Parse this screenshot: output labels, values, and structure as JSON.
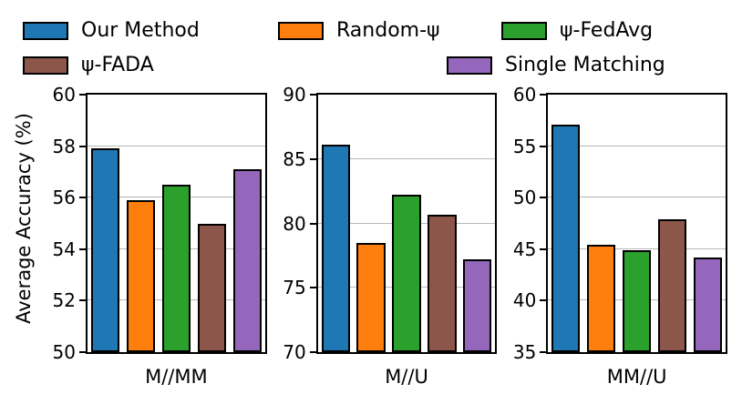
{
  "legend": {
    "entries": [
      {
        "label": "Our Method",
        "color": "#1f77b4"
      },
      {
        "label": "Random-ψ",
        "color": "#ff7f0e"
      },
      {
        "label": "ψ-FedAvg",
        "color": "#2ca02c"
      },
      {
        "label": "ψ-FADA",
        "color": "#8c564b"
      },
      {
        "label": "Single Matching",
        "color": "#9467bd"
      }
    ]
  },
  "chart_data": [
    {
      "type": "bar",
      "title": "",
      "xlabel": "M//MM",
      "ylabel": "Average Accuracy (%)",
      "ylim": [
        50,
        60
      ],
      "yticks": [
        50,
        52,
        54,
        56,
        58,
        60
      ],
      "grid": true,
      "categories": [
        "Our Method",
        "Random-ψ",
        "ψ-FedAvg",
        "ψ-FADA",
        "Single Matching"
      ],
      "values": [
        57.9,
        55.9,
        56.5,
        55.0,
        57.1
      ]
    },
    {
      "type": "bar",
      "title": "",
      "xlabel": "M//U",
      "ylabel": "",
      "ylim": [
        70,
        90
      ],
      "yticks": [
        70,
        75,
        80,
        85,
        90
      ],
      "grid": true,
      "categories": [
        "Our Method",
        "Random-ψ",
        "ψ-FedAvg",
        "ψ-FADA",
        "Single Matching"
      ],
      "values": [
        86.1,
        78.5,
        82.2,
        80.7,
        77.2
      ]
    },
    {
      "type": "bar",
      "title": "",
      "xlabel": "MM//U",
      "ylabel": "",
      "ylim": [
        35,
        60
      ],
      "yticks": [
        35,
        40,
        45,
        50,
        55,
        60
      ],
      "grid": true,
      "categories": [
        "Our Method",
        "Random-ψ",
        "ψ-FedAvg",
        "ψ-FADA",
        "Single Matching"
      ],
      "values": [
        57.1,
        45.4,
        44.9,
        47.9,
        44.2
      ]
    }
  ]
}
